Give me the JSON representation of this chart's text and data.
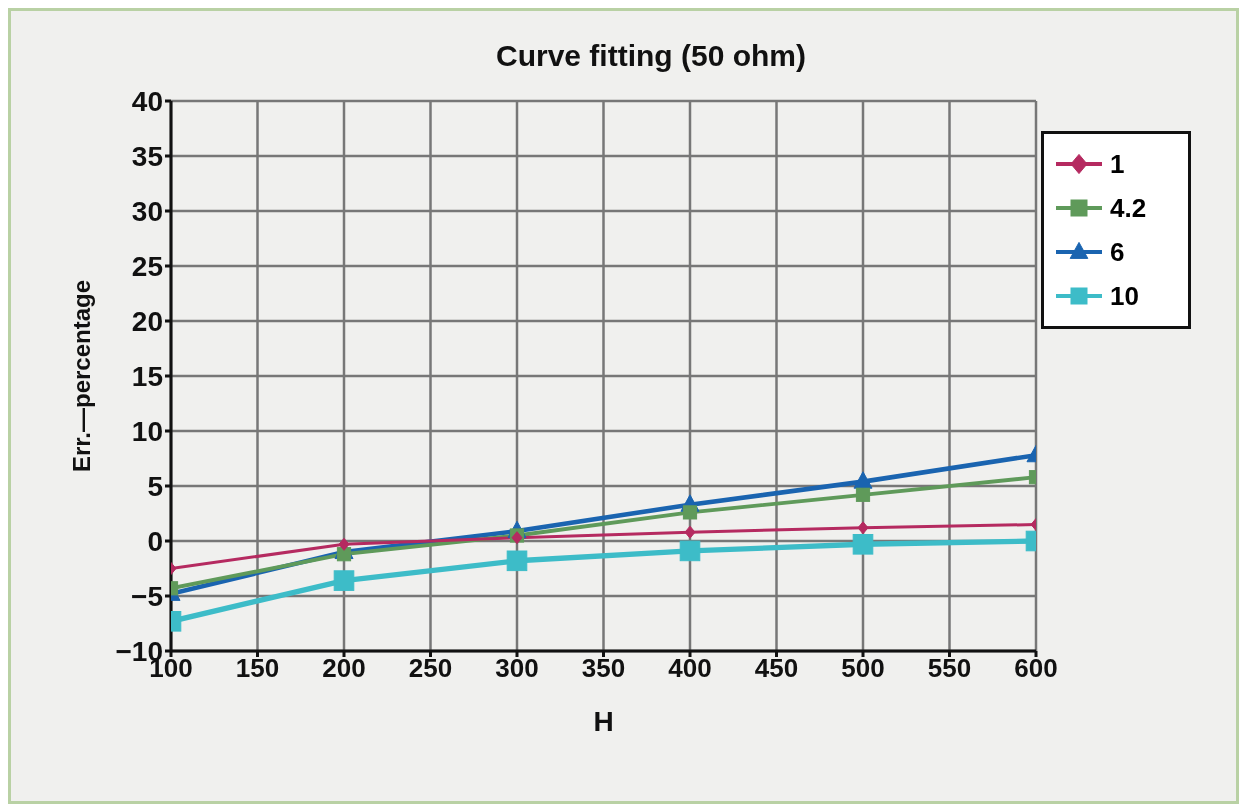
{
  "chart_data": {
    "type": "line",
    "title": "Curve fitting (50 ohm)",
    "xlabel": "H",
    "ylabel": "Err.—percentage",
    "x": [
      100,
      200,
      300,
      400,
      500,
      600
    ],
    "series": [
      {
        "name": "1",
        "color": "#b52a60",
        "marker": "diamond",
        "values": [
          -2.5,
          -0.3,
          0.3,
          0.8,
          1.2,
          1.5
        ]
      },
      {
        "name": "4.2",
        "color": "#5f9a5a",
        "marker": "square",
        "values": [
          -4.3,
          -1.2,
          0.5,
          2.6,
          4.2,
          5.8
        ]
      },
      {
        "name": "6",
        "color": "#1a64b0",
        "marker": "triangle",
        "values": [
          -4.8,
          -1.0,
          0.9,
          3.3,
          5.4,
          7.8
        ]
      },
      {
        "name": "10",
        "color": "#3dbcc8",
        "marker": "square",
        "values": [
          -7.3,
          -3.6,
          -1.8,
          -0.9,
          -0.3,
          0.0
        ]
      }
    ],
    "xlim": [
      100,
      600
    ],
    "xticks": [
      100,
      150,
      200,
      250,
      300,
      350,
      400,
      450,
      500,
      550,
      600
    ],
    "ylim": [
      -10,
      40
    ],
    "yticks": [
      {
        "value": -10,
        "label": "−10"
      },
      {
        "value": -5,
        "label": "−5"
      },
      0,
      5,
      10,
      15,
      20,
      25,
      30,
      35,
      40
    ],
    "grid": true,
    "legend": "top right",
    "line_style": "solid"
  }
}
